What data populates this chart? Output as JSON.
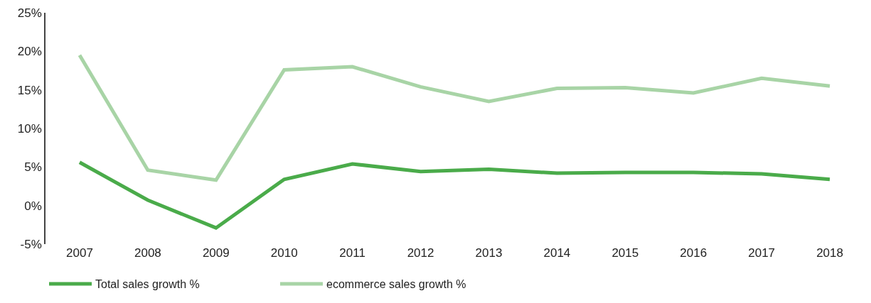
{
  "chart_data": {
    "type": "line",
    "categories": [
      "2007",
      "2008",
      "2009",
      "2010",
      "2011",
      "2012",
      "2013",
      "2014",
      "2015",
      "2016",
      "2017",
      "2018"
    ],
    "series": [
      {
        "name": "Total sales growth %",
        "color": "#4aab4a",
        "values": [
          5.6,
          0.7,
          -2.9,
          3.4,
          5.4,
          4.4,
          4.7,
          4.2,
          4.3,
          4.3,
          4.1,
          3.4
        ]
      },
      {
        "name": "ecommerce sales growth %",
        "color": "#a8d4a6",
        "values": [
          19.5,
          4.6,
          3.3,
          17.6,
          18.0,
          15.4,
          13.5,
          15.2,
          15.3,
          14.6,
          16.5,
          15.5
        ]
      }
    ],
    "ylim": [
      -5,
      25
    ],
    "yticks": [
      {
        "value": -5,
        "label": "-5%"
      },
      {
        "value": 0,
        "label": "0%"
      },
      {
        "value": 5,
        "label": "5%"
      },
      {
        "value": 10,
        "label": "10%"
      },
      {
        "value": 15,
        "label": "15%"
      },
      {
        "value": 20,
        "label": "20%"
      },
      {
        "value": 25,
        "label": "25%"
      }
    ],
    "legend": "bottom left",
    "marker": "none",
    "line_style": "solid"
  }
}
